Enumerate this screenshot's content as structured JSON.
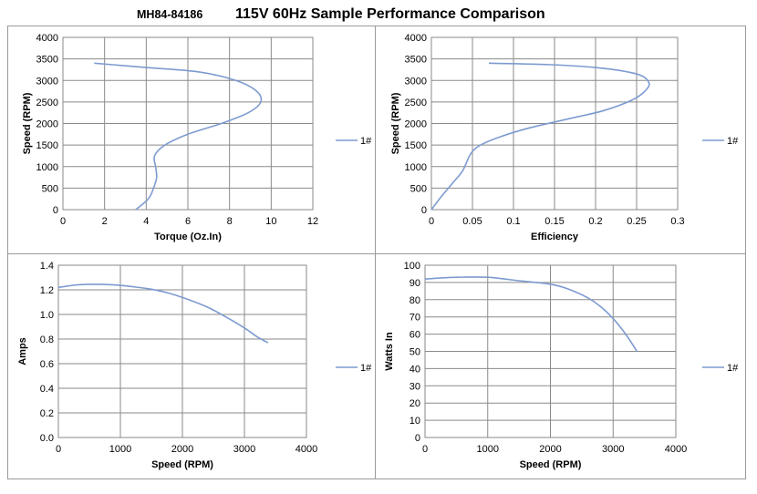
{
  "header": {
    "model": "MH84-84186",
    "title": "115V 60Hz Sample Performance Comparison"
  },
  "colors": {
    "series": "#7d9bd0",
    "grid": "#8a8a8a",
    "axis": "#8a8a8a"
  },
  "chart_data": [
    {
      "type": "line",
      "xlabel": "Torque (Oz.In)",
      "ylabel": "Speed (RPM)",
      "xlim": [
        0,
        12
      ],
      "ylim": [
        0,
        4000
      ],
      "xticks": [
        "0",
        "2",
        "4",
        "6",
        "8",
        "10",
        "12"
      ],
      "yticks": [
        "0",
        "500",
        "1000",
        "1500",
        "2000",
        "2500",
        "3000",
        "3500",
        "4000"
      ],
      "grid": true,
      "legend": "right",
      "series": [
        {
          "name": "1#",
          "x": [
            3.5,
            4.1,
            4.35,
            4.5,
            4.45,
            4.4,
            4.9,
            6.0,
            7.6,
            8.9,
            9.5,
            9.3,
            8.3,
            6.5,
            4.0,
            1.5
          ],
          "y": [
            0,
            250,
            500,
            750,
            1000,
            1250,
            1500,
            1750,
            2000,
            2250,
            2500,
            2750,
            3000,
            3200,
            3300,
            3400
          ]
        }
      ]
    },
    {
      "type": "line",
      "xlabel": "Efficiency",
      "ylabel": "Speed (RPM)",
      "xlim": [
        0,
        0.3
      ],
      "ylim": [
        0,
        4000
      ],
      "xticks": [
        "0",
        "0.05",
        "0.1",
        "0.15",
        "0.2",
        "0.25",
        "0.3"
      ],
      "yticks": [
        "0",
        "500",
        "1000",
        "1500",
        "2000",
        "2500",
        "3000",
        "3500",
        "4000"
      ],
      "grid": true,
      "legend": "right",
      "series": [
        {
          "name": "1#",
          "x": [
            0.0,
            0.012,
            0.025,
            0.038,
            0.048,
            0.06,
            0.085,
            0.12,
            0.165,
            0.21,
            0.245,
            0.26,
            0.265,
            0.25,
            0.2,
            0.14,
            0.07
          ],
          "y": [
            0,
            300,
            600,
            900,
            1300,
            1500,
            1700,
            1900,
            2100,
            2300,
            2550,
            2750,
            2950,
            3150,
            3300,
            3370,
            3400
          ]
        }
      ]
    },
    {
      "type": "line",
      "xlabel": "Speed (RPM)",
      "ylabel": "Amps",
      "xlim": [
        0,
        4000
      ],
      "ylim": [
        0.0,
        1.4
      ],
      "xticks": [
        "0",
        "1000",
        "2000",
        "3000",
        "4000"
      ],
      "yticks": [
        "0.0",
        "0.2",
        "0.4",
        "0.6",
        "0.8",
        "1.0",
        "1.2",
        "1.4"
      ],
      "grid": true,
      "legend": "right",
      "series": [
        {
          "name": "1#",
          "x": [
            0,
            300,
            600,
            900,
            1200,
            1500,
            1800,
            2100,
            2400,
            2700,
            3000,
            3200,
            3380
          ],
          "y": [
            1.22,
            1.24,
            1.245,
            1.24,
            1.225,
            1.205,
            1.17,
            1.12,
            1.06,
            0.98,
            0.89,
            0.82,
            0.77
          ]
        }
      ]
    },
    {
      "type": "line",
      "xlabel": "Speed (RPM)",
      "ylabel": "Watts In",
      "xlim": [
        0,
        4000
      ],
      "ylim": [
        0,
        100
      ],
      "xticks": [
        "0",
        "1000",
        "2000",
        "3000",
        "4000"
      ],
      "yticks": [
        "0",
        "10",
        "20",
        "30",
        "40",
        "50",
        "60",
        "70",
        "80",
        "90",
        "100"
      ],
      "grid": true,
      "legend": "right",
      "series": [
        {
          "name": "1#",
          "x": [
            0,
            500,
            1000,
            1500,
            2000,
            2300,
            2600,
            2800,
            3000,
            3200,
            3380
          ],
          "y": [
            92,
            93,
            93,
            91,
            89,
            86,
            81,
            76,
            69,
            60,
            50
          ]
        }
      ]
    }
  ]
}
